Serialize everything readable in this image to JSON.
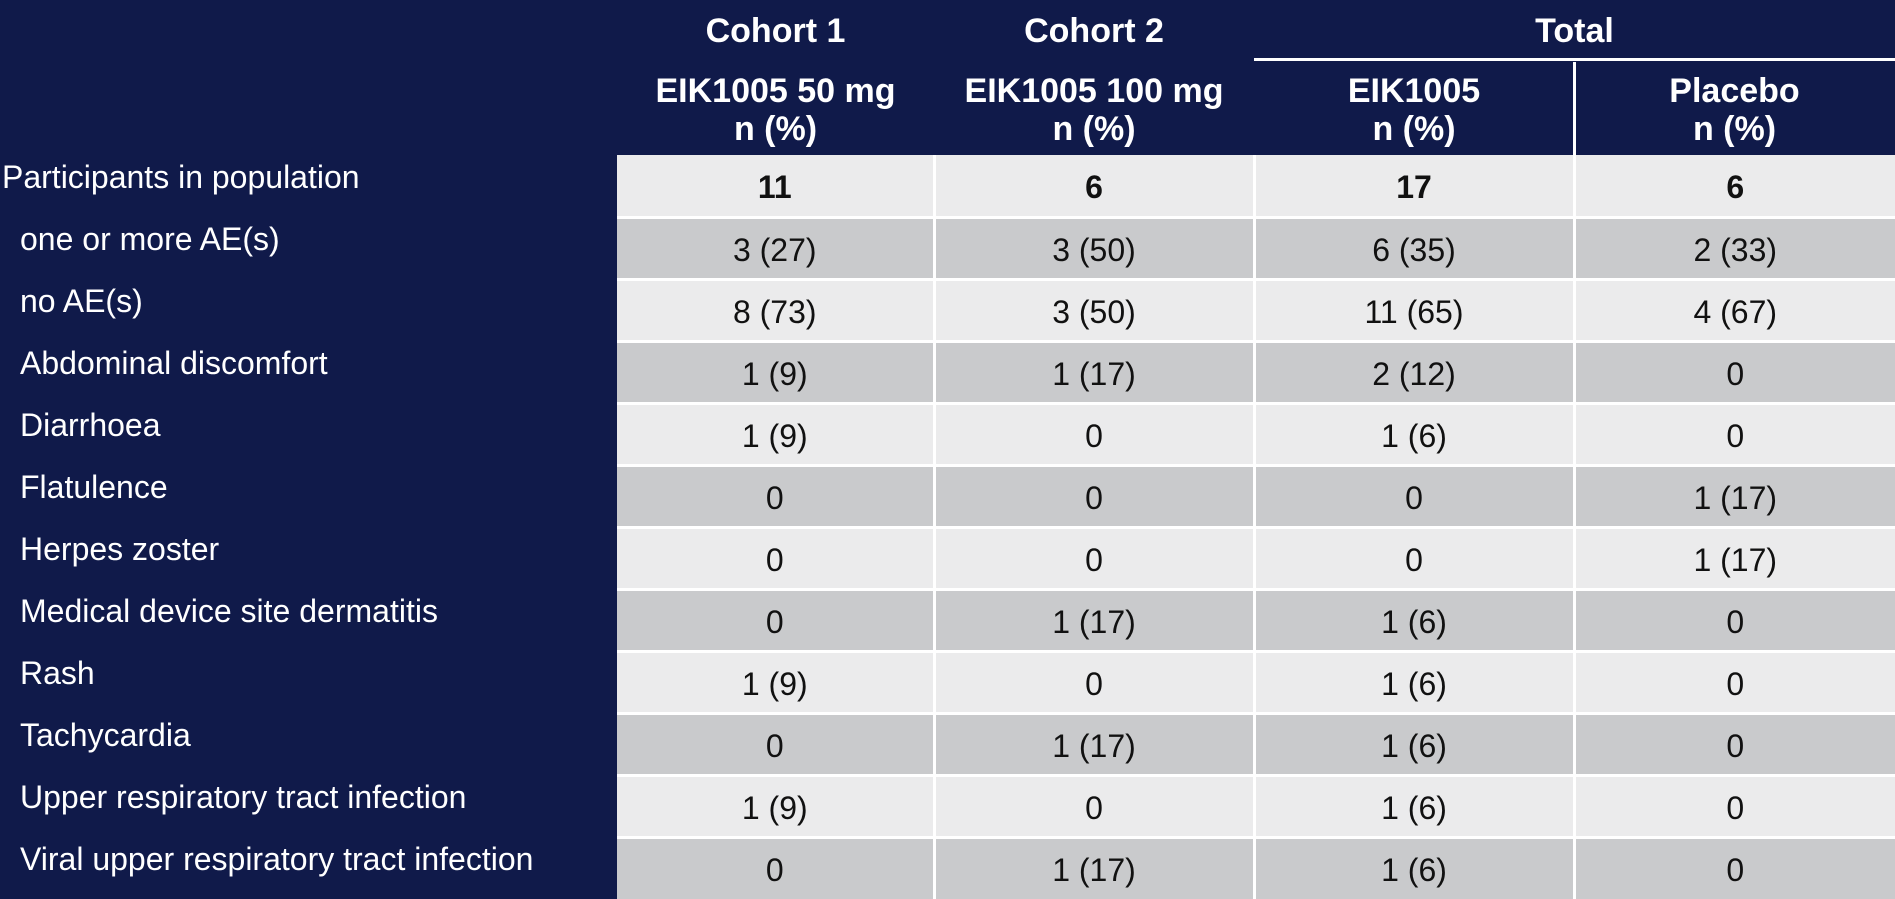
{
  "header": {
    "cohort1": "Cohort 1",
    "cohort2": "Cohort 2",
    "total": "Total",
    "col1_line1": "EIK1005 50 mg",
    "col1_line2": "n (%)",
    "col2_line1": "EIK1005 100 mg",
    "col2_line2": "n (%)",
    "col3_line1": "EIK1005",
    "col3_line2": "n (%)",
    "col4_line1": "Placebo",
    "col4_line2": "n (%)"
  },
  "rows": [
    {
      "label": "Participants in population",
      "values": [
        "11",
        "6",
        "17",
        "6"
      ]
    },
    {
      "label": "one or more AE(s)",
      "values": [
        "3 (27)",
        "3 (50)",
        "6 (35)",
        "2 (33)"
      ]
    },
    {
      "label": "no AE(s)",
      "values": [
        "8 (73)",
        "3 (50)",
        "11 (65)",
        "4 (67)"
      ]
    },
    {
      "label": "Abdominal discomfort",
      "values": [
        "1 (9)",
        "1 (17)",
        "2 (12)",
        "0"
      ]
    },
    {
      "label": "Diarrhoea",
      "values": [
        "1 (9)",
        "0",
        "1 (6)",
        "0"
      ]
    },
    {
      "label": "Flatulence",
      "values": [
        "0",
        "0",
        "0",
        "1 (17)"
      ]
    },
    {
      "label": "Herpes zoster",
      "values": [
        "0",
        "0",
        "0",
        "1 (17)"
      ]
    },
    {
      "label": "Medical device site dermatitis",
      "values": [
        "0",
        "1 (17)",
        "1 (6)",
        "0"
      ]
    },
    {
      "label": "Rash",
      "values": [
        "1 (9)",
        "0",
        "1 (6)",
        "0"
      ]
    },
    {
      "label": "Tachycardia",
      "values": [
        "0",
        "1 (17)",
        "1 (6)",
        "0"
      ]
    },
    {
      "label": "Upper respiratory tract infection",
      "values": [
        "1 (9)",
        "0",
        "1 (6)",
        "0"
      ]
    },
    {
      "label": "Viral upper respiratory tract infection",
      "values": [
        "0",
        "1 (17)",
        "1 (6)",
        "0"
      ]
    }
  ]
}
